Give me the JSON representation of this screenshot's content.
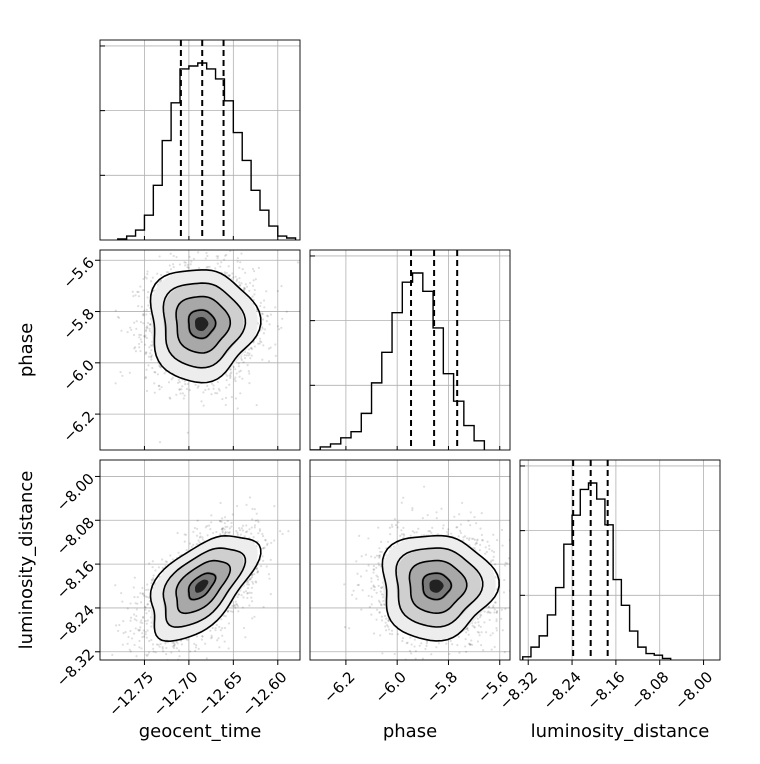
{
  "chart_data": {
    "type": "corner",
    "parameters": [
      "geocent_time",
      "phase",
      "luminosity_distance"
    ],
    "ranges": {
      "geocent_time": [
        -12.8,
        -12.575
      ],
      "phase": [
        -6.34,
        -5.56
      ],
      "luminosity_distance": [
        -8.335,
        -7.97
      ]
    },
    "ticks": {
      "geocent_time": {
        "values": [
          -12.75,
          -12.7,
          -12.65,
          -12.6
        ],
        "labels": [
          "−12.75",
          "−12.70",
          "−12.65",
          "−12.60"
        ]
      },
      "phase": {
        "values": [
          -6.2,
          -6.0,
          -5.8,
          -5.6
        ],
        "labels": [
          "−6.2",
          "−6.0",
          "−5.8",
          "−5.6"
        ]
      },
      "luminosity_distance": {
        "values": [
          -8.32,
          -8.24,
          -8.16,
          -8.08,
          -8.0
        ],
        "labels": [
          "−8.32",
          "−8.24",
          "−8.16",
          "−8.08",
          "−8.00"
        ]
      }
    },
    "quantiles": {
      "geocent_time": [
        -12.709,
        -12.685,
        -12.661
      ],
      "phase": [
        -5.946,
        -5.856,
        -5.766
      ],
      "luminosity_distance": [
        -8.238,
        -8.206,
        -8.175
      ]
    },
    "histograms": {
      "geocent_time": {
        "edges_start": -12.78,
        "bin_width": 0.01,
        "counts": [
          1,
          4,
          10,
          25,
          55,
          100,
          138,
          172,
          175,
          178,
          172,
          162,
          140,
          108,
          80,
          50,
          30,
          14,
          4,
          2
        ]
      },
      "phase": {
        "edges_start": -6.34,
        "bin_width": 0.04,
        "counts": [
          0,
          1,
          2,
          4,
          6,
          12,
          22,
          32,
          45,
          55,
          58,
          52,
          40,
          25,
          16,
          8,
          3
        ]
      },
      "luminosity_distance": {
        "edges_start": -8.33,
        "bin_width": 0.015,
        "counts": [
          2,
          8,
          15,
          28,
          45,
          72,
          90,
          106,
          110,
          100,
          84,
          50,
          34,
          18,
          8,
          4,
          3,
          1
        ]
      }
    },
    "joint": [
      {
        "x": "geocent_time",
        "y": "phase",
        "mean": [
          -12.686,
          -5.848
        ],
        "sd": [
          0.03,
          0.11
        ],
        "rho": 0.0
      },
      {
        "x": "geocent_time",
        "y": "luminosity_distance",
        "mean": [
          -12.686,
          -8.2
        ],
        "sd": [
          0.03,
          0.048
        ],
        "rho": 0.55
      },
      {
        "x": "phase",
        "y": "luminosity_distance",
        "mean": [
          -5.848,
          -8.2
        ],
        "sd": [
          0.11,
          0.048
        ],
        "rho": 0.0
      }
    ],
    "grid": true
  }
}
